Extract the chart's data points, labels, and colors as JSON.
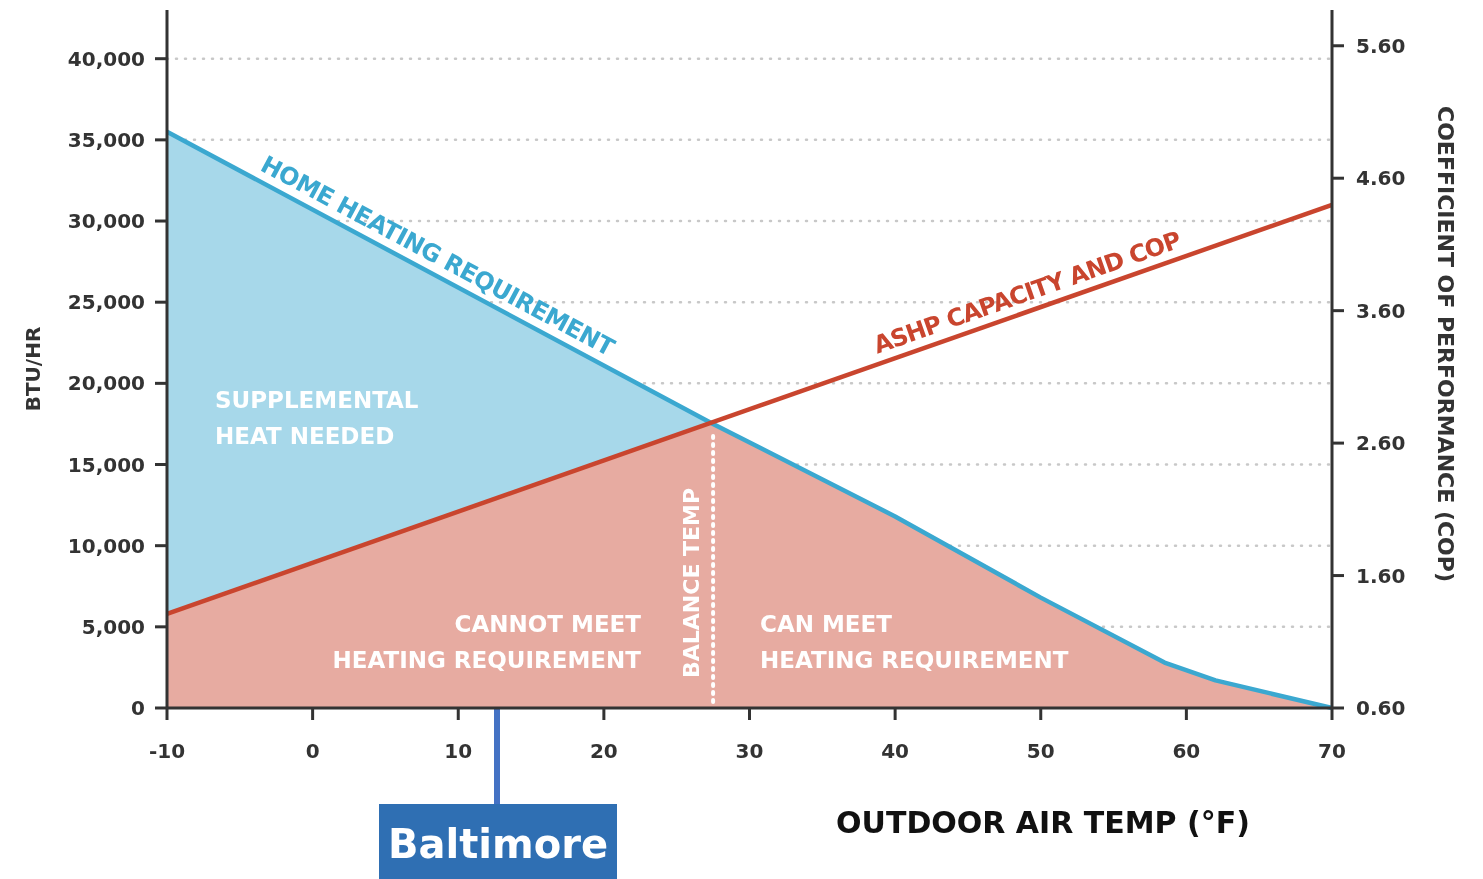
{
  "chart_data": {
    "type": "area",
    "xlabel": "OUTDOOR AIR TEMP (°F)",
    "ylabel": "BTU/HR",
    "y2label": "COEFFICIENT OF PERFORMANCE (COP)",
    "series": [
      {
        "name": "HOME HEATING REQUIREMENT",
        "color": "#3ba8d0",
        "x": [
          -10,
          27.5,
          40,
          50,
          58.5,
          62,
          70
        ],
        "values": [
          35500,
          17500,
          11800,
          6800,
          2800,
          1700,
          0
        ]
      },
      {
        "name": "ASHP CAPACITY AND COP",
        "color": "#c9452e",
        "x": [
          -10,
          70
        ],
        "values": [
          5800,
          31000
        ]
      }
    ],
    "xlim": [
      -10,
      70
    ],
    "xticks": [
      -10,
      0,
      10,
      20,
      30,
      40,
      50,
      60,
      70
    ],
    "ylim": [
      0,
      43000
    ],
    "yticks": [
      {
        "value": 0,
        "label": "0"
      },
      {
        "value": 5000,
        "label": "5,000"
      },
      {
        "value": 10000,
        "label": "10,000"
      },
      {
        "value": 15000,
        "label": "15,000"
      },
      {
        "value": 20000,
        "label": "20,000"
      },
      {
        "value": 25000,
        "label": "25,000"
      },
      {
        "value": 30000,
        "label": "30,000"
      },
      {
        "value": 35000,
        "label": "35,000"
      },
      {
        "value": 40000,
        "label": "40,000"
      }
    ],
    "y2lim": [
      0.6,
      5.87
    ],
    "y2ticks": [
      {
        "value": 0.6,
        "label": "0.60"
      },
      {
        "value": 1.6,
        "label": "1.60"
      },
      {
        "value": 2.6,
        "label": "2.60"
      },
      {
        "value": 3.6,
        "label": "3.60"
      },
      {
        "value": 4.6,
        "label": "4.60"
      },
      {
        "value": 5.6,
        "label": "5.60"
      }
    ],
    "ref_lines": [
      {
        "axis": "x",
        "value": 27.5,
        "label": "BALANCE TEMP",
        "color": "#ffffff",
        "line_style": "dotted"
      }
    ],
    "annotations": [
      "SUPPLEMENTAL\nHEAT NEEDED",
      "CANNOT MEET\nHEATING REQUIREMENT",
      "CAN MEET\nHEATING REQUIREMENT",
      "Baltimore"
    ],
    "grid": "y"
  }
}
